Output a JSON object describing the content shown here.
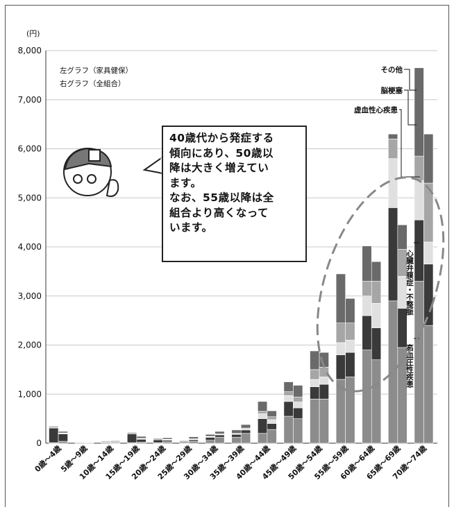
{
  "chart_data": {
    "type": "bar",
    "stacked": true,
    "paired_bars": true,
    "unit_label": "(円)",
    "note_lines": [
      "左グラフ（家具健保）",
      "右グラフ（全組合）"
    ],
    "callout_text": "40歳代から発症する\n傾向にあり、50歳以\n降は大きく増えてい\nます。\nなお、55歳以降は全\n組合より高くなって\nいます。",
    "ylim": [
      0,
      8000
    ],
    "yticks": [
      "0",
      "1,000",
      "2,000",
      "3,000",
      "4,000",
      "5,000",
      "6,000",
      "7,000",
      "8,000"
    ],
    "grid": true,
    "categories": [
      "0歳～4歳",
      "5歳～9歳",
      "10歳～14歳",
      "15歳～19歳",
      "20歳～24歳",
      "25歳～29歳",
      "30歳～34歳",
      "35歳～39歳",
      "40歳～44歳",
      "45歳～49歳",
      "50歳～54歳",
      "55歳～59歳",
      "60歳～64歳",
      "65歳～69歳",
      "70歳～74歳"
    ],
    "series_labels": [
      "高血圧性疾患",
      "心臓弁膜症・不整脈",
      "虚血性心疾患",
      "脳梗塞",
      "その他"
    ],
    "series_colors": [
      "#8c8c8c",
      "#3a3a3a",
      "#e0e0e0",
      "#a6a6a6",
      "#6a6a6a"
    ],
    "bars_left_family": [
      [
        10,
        300,
        10,
        0,
        20
      ],
      [
        5,
        10,
        5,
        0,
        10
      ],
      [
        5,
        15,
        5,
        0,
        15
      ],
      [
        10,
        180,
        5,
        0,
        20
      ],
      [
        10,
        60,
        5,
        0,
        20
      ],
      [
        10,
        20,
        5,
        0,
        15
      ],
      [
        60,
        60,
        10,
        10,
        40
      ],
      [
        120,
        60,
        10,
        10,
        70
      ],
      [
        200,
        300,
        100,
        50,
        200
      ],
      [
        550,
        300,
        120,
        80,
        200
      ],
      [
        900,
        250,
        150,
        200,
        380
      ],
      [
        1300,
        500,
        250,
        400,
        1000
      ],
      [
        1900,
        700,
        400,
        300,
        720
      ],
      [
        2900,
        1900,
        1000,
        400,
        100
      ],
      [
        3300,
        1250,
        800,
        500,
        1800
      ]
    ],
    "bars_right_all": [
      [
        40,
        150,
        10,
        10,
        30
      ],
      [
        10,
        10,
        5,
        5,
        10
      ],
      [
        10,
        15,
        5,
        5,
        15
      ],
      [
        20,
        60,
        10,
        10,
        40
      ],
      [
        30,
        30,
        10,
        10,
        30
      ],
      [
        40,
        30,
        10,
        10,
        40
      ],
      [
        120,
        50,
        10,
        10,
        50
      ],
      [
        200,
        70,
        20,
        20,
        70
      ],
      [
        280,
        120,
        80,
        60,
        120
      ],
      [
        500,
        220,
        120,
        100,
        240
      ],
      [
        900,
        300,
        150,
        200,
        300
      ],
      [
        1350,
        500,
        250,
        350,
        500
      ],
      [
        1700,
        650,
        500,
        450,
        400
      ],
      [
        1950,
        800,
        650,
        550,
        500
      ],
      [
        2400,
        1250,
        450,
        1200,
        1000
      ]
    ]
  }
}
